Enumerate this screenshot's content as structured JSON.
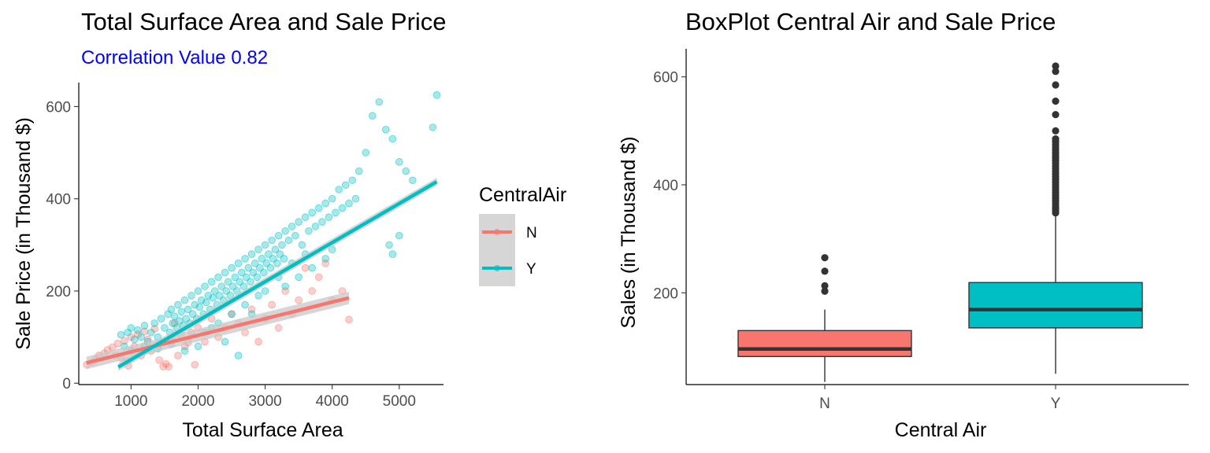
{
  "colors": {
    "N": "#F8766D",
    "Y": "#00BFC4",
    "ci_band": "#c8c8c8",
    "median": "#333333",
    "outlier": "#333333",
    "subtitle": "#0000ff"
  },
  "chart_data": [
    {
      "type": "scatter",
      "title": "Total Surface Area and Sale Price",
      "subtitle": "Correlation Value 0.82",
      "xlabel": "Total Surface Area",
      "ylabel": "Sale Price (in Thousand $)",
      "xlim": [
        220,
        5660
      ],
      "ylim": [
        -3,
        652
      ],
      "x_ticks": [
        1000,
        2000,
        3000,
        4000,
        5000
      ],
      "y_ticks": [
        0,
        200,
        400,
        600
      ],
      "grid": false,
      "legend": {
        "title": "CentralAir",
        "position": "right",
        "entries": [
          "N",
          "Y"
        ]
      },
      "series": [
        {
          "name": "N",
          "regression": {
            "x": [
              334,
              4250
            ],
            "y": [
              44,
              185
            ]
          },
          "points": [
            [
              340,
              40
            ],
            [
              420,
              45
            ],
            [
              480,
              52
            ],
            [
              520,
              60
            ],
            [
              600,
              65
            ],
            [
              650,
              72
            ],
            [
              720,
              78
            ],
            [
              760,
              60
            ],
            [
              800,
              86
            ],
            [
              850,
              55
            ],
            [
              900,
              92
            ],
            [
              940,
              48
            ],
            [
              960,
              38
            ],
            [
              1000,
              100
            ],
            [
              1050,
              80
            ],
            [
              1100,
              106
            ],
            [
              1150,
              60
            ],
            [
              1200,
              112
            ],
            [
              1250,
              95
            ],
            [
              1300,
              70
            ],
            [
              1350,
              118
            ],
            [
              1420,
              50
            ],
            [
              1480,
              36
            ],
            [
              1520,
              42
            ],
            [
              1560,
              36
            ],
            [
              1600,
              95
            ],
            [
              1650,
              130
            ],
            [
              1700,
              60
            ],
            [
              1750,
              105
            ],
            [
              1800,
              80
            ],
            [
              1850,
              88
            ],
            [
              1900,
              110
            ],
            [
              1950,
              40
            ],
            [
              2000,
              120
            ],
            [
              2100,
              90
            ],
            [
              2200,
              140
            ],
            [
              2300,
              100
            ],
            [
              2400,
              120
            ],
            [
              2500,
              150
            ],
            [
              2600,
              130
            ],
            [
              2700,
              110
            ],
            [
              2800,
              160
            ],
            [
              2900,
              90
            ],
            [
              3000,
              140
            ],
            [
              3100,
              170
            ],
            [
              3200,
              120
            ],
            [
              3300,
              200
            ],
            [
              3400,
              150
            ],
            [
              3500,
              180
            ],
            [
              3600,
              250
            ],
            [
              3700,
              200
            ],
            [
              3800,
              230
            ],
            [
              3900,
              260
            ],
            [
              4000,
              180
            ],
            [
              4150,
              200
            ],
            [
              4250,
              138
            ]
          ]
        },
        {
          "name": "Y",
          "regression": {
            "x": [
              810,
              5560
            ],
            "y": [
              35,
              437
            ]
          },
          "points": [
            [
              850,
              105
            ],
            [
              900,
              80
            ],
            [
              950,
              110
            ],
            [
              1000,
              120
            ],
            [
              1050,
              95
            ],
            [
              1100,
              115
            ],
            [
              1150,
              100
            ],
            [
              1200,
              125
            ],
            [
              1250,
              90
            ],
            [
              1300,
              110
            ],
            [
              1350,
              130
            ],
            [
              1400,
              100
            ],
            [
              1450,
              140
            ],
            [
              1500,
              120
            ],
            [
              1550,
              150
            ],
            [
              1580,
              110
            ],
            [
              1600,
              160
            ],
            [
              1620,
              130
            ],
            [
              1650,
              145
            ],
            [
              1680,
              120
            ],
            [
              1700,
              170
            ],
            [
              1720,
              135
            ],
            [
              1750,
              155
            ],
            [
              1780,
              125
            ],
            [
              1800,
              180
            ],
            [
              1820,
              140
            ],
            [
              1850,
              160
            ],
            [
              1880,
              130
            ],
            [
              1900,
              190
            ],
            [
              1920,
              150
            ],
            [
              1950,
              170
            ],
            [
              1980,
              140
            ],
            [
              2000,
              200
            ],
            [
              2020,
              165
            ],
            [
              2050,
              180
            ],
            [
              2080,
              150
            ],
            [
              2100,
              210
            ],
            [
              2120,
              175
            ],
            [
              2150,
              190
            ],
            [
              2180,
              160
            ],
            [
              2200,
              220
            ],
            [
              2220,
              185
            ],
            [
              2250,
              200
            ],
            [
              2280,
              170
            ],
            [
              2300,
              230
            ],
            [
              2320,
              190
            ],
            [
              2350,
              210
            ],
            [
              2380,
              180
            ],
            [
              2400,
              240
            ],
            [
              2420,
              200
            ],
            [
              2450,
              220
            ],
            [
              2480,
              190
            ],
            [
              2500,
              250
            ],
            [
              2520,
              210
            ],
            [
              2550,
              230
            ],
            [
              2580,
              200
            ],
            [
              2600,
              260
            ],
            [
              2620,
              220
            ],
            [
              2650,
              240
            ],
            [
              2680,
              210
            ],
            [
              2700,
              270
            ],
            [
              2720,
              230
            ],
            [
              2750,
              250
            ],
            [
              2780,
              220
            ],
            [
              2800,
              280
            ],
            [
              2820,
              240
            ],
            [
              2850,
              260
            ],
            [
              2880,
              230
            ],
            [
              2900,
              290
            ],
            [
              2920,
              250
            ],
            [
              2950,
              270
            ],
            [
              2980,
              240
            ],
            [
              3000,
              300
            ],
            [
              3020,
              260
            ],
            [
              3050,
              280
            ],
            [
              3080,
              250
            ],
            [
              3100,
              310
            ],
            [
              3120,
              270
            ],
            [
              3150,
              290
            ],
            [
              3180,
              260
            ],
            [
              3200,
              320
            ],
            [
              3220,
              280
            ],
            [
              3250,
              300
            ],
            [
              3280,
              270
            ],
            [
              3300,
              330
            ],
            [
              3350,
              310
            ],
            [
              3400,
              340
            ],
            [
              3450,
              320
            ],
            [
              3500,
              350
            ],
            [
              3550,
              300
            ],
            [
              3600,
              360
            ],
            [
              3650,
              330
            ],
            [
              3700,
              370
            ],
            [
              3750,
              340
            ],
            [
              3800,
              380
            ],
            [
              3850,
              350
            ],
            [
              3900,
              390
            ],
            [
              3950,
              360
            ],
            [
              4000,
              400
            ],
            [
              4050,
              370
            ],
            [
              4100,
              420
            ],
            [
              4150,
              380
            ],
            [
              4200,
              430
            ],
            [
              4250,
              390
            ],
            [
              4300,
              440
            ],
            [
              4350,
              400
            ],
            [
              4400,
              460
            ],
            [
              4500,
              500
            ],
            [
              4600,
              580
            ],
            [
              4700,
              610
            ],
            [
              4800,
              550
            ],
            [
              4900,
              530
            ],
            [
              5000,
              480
            ],
            [
              5100,
              460
            ],
            [
              5200,
              440
            ],
            [
              5500,
              555
            ],
            [
              5560,
              625
            ],
            [
              4850,
              300
            ],
            [
              4900,
              280
            ],
            [
              5000,
              320
            ],
            [
              4000,
              290
            ],
            [
              3900,
              270
            ],
            [
              3700,
              250
            ],
            [
              3500,
              230
            ],
            [
              3300,
              210
            ],
            [
              2900,
              190
            ],
            [
              2700,
              170
            ],
            [
              2500,
              150
            ],
            [
              2300,
              130
            ],
            [
              2100,
              110
            ],
            [
              2600,
              60
            ],
            [
              2400,
              90
            ],
            [
              2000,
              80
            ],
            [
              1800,
              70
            ],
            [
              1600,
              85
            ],
            [
              1400,
              75
            ],
            [
              1200,
              80
            ],
            [
              1000,
              70
            ],
            [
              3000,
              200
            ],
            [
              3200,
              230
            ],
            [
              3400,
              260
            ],
            [
              3600,
              280
            ],
            [
              2200,
              120
            ],
            [
              2800,
              150
            ]
          ]
        }
      ]
    },
    {
      "type": "box",
      "title": "BoxPlot Central Air and Sale Price",
      "xlabel": "Central Air",
      "ylabel": "Sales (in Thousand $)",
      "categories": [
        "N",
        "Y"
      ],
      "ylim": [
        30,
        652
      ],
      "y_ticks": [
        200,
        400,
        600
      ],
      "grid": false,
      "boxes": [
        {
          "category": "N",
          "whisker_low": 35,
          "q1": 82,
          "median": 96,
          "q3": 130,
          "whisker_high": 169,
          "outliers": [
            203,
            213,
            240,
            265
          ]
        },
        {
          "category": "Y",
          "whisker_low": 50,
          "q1": 135,
          "median": 169,
          "q3": 219,
          "whisker_high": 345,
          "outliers": [
            348,
            352,
            356,
            360,
            365,
            370,
            375,
            380,
            385,
            390,
            395,
            400,
            405,
            410,
            415,
            420,
            425,
            430,
            435,
            440,
            445,
            450,
            455,
            460,
            465,
            470,
            475,
            480,
            485,
            500,
            530,
            555,
            585,
            610,
            620
          ]
        }
      ]
    }
  ]
}
